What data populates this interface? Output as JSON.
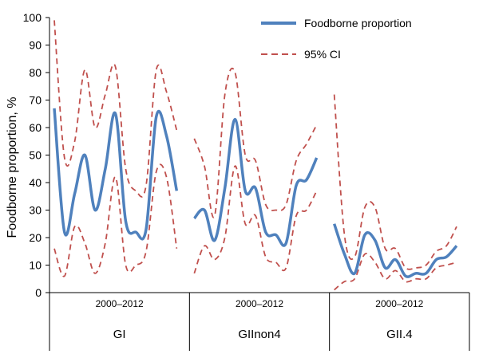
{
  "chart_data": {
    "type": "line",
    "ylabel": "Foodborne proportion, %",
    "ylim": [
      0,
      100
    ],
    "yticks": [
      0,
      10,
      20,
      30,
      40,
      50,
      60,
      70,
      80,
      90,
      100
    ],
    "grid": false,
    "legend_position": "top-right",
    "x_period_label": "2000–2012",
    "groups": [
      {
        "name": "GI",
        "period": "2000–2012",
        "foodborne": [
          67,
          22,
          36,
          50,
          30,
          45,
          65,
          26,
          22,
          23,
          64,
          57,
          37
        ],
        "ci_upper": [
          99,
          49,
          55,
          81,
          60,
          72,
          82,
          45,
          37,
          39,
          81,
          73,
          59
        ],
        "ci_lower": [
          16,
          6,
          24,
          18,
          7,
          18,
          42,
          10,
          10,
          15,
          44,
          42,
          16
        ]
      },
      {
        "name": "GIInon4",
        "period": "2000–2012",
        "foodborne": [
          27,
          30,
          19,
          38,
          63,
          37,
          38,
          22,
          21,
          18,
          39,
          41,
          49
        ],
        "ci_upper": [
          56,
          46,
          28,
          72,
          80,
          50,
          48,
          32,
          30,
          32,
          48,
          54,
          61
        ],
        "ci_lower": [
          7,
          17,
          12,
          20,
          46,
          25,
          28,
          13,
          11,
          9,
          28,
          30,
          37
        ]
      },
      {
        "name": "GII.4",
        "period": "2000–2012",
        "foodborne": [
          25,
          14,
          7,
          21,
          19,
          9,
          12,
          6,
          7,
          7,
          12,
          13,
          17
        ],
        "ci_upper": [
          72,
          21,
          13,
          31,
          31,
          16,
          16,
          9,
          9,
          10,
          15,
          17,
          24
        ],
        "ci_lower": [
          1,
          4,
          5,
          14,
          11,
          5,
          8,
          4,
          5,
          5,
          9,
          10,
          11
        ]
      }
    ],
    "legend": [
      {
        "label": "Foodborne proportion",
        "color": "#4f81bd",
        "style": "solid"
      },
      {
        "label": "95% CI",
        "color": "#c0504d",
        "style": "dashed"
      }
    ]
  },
  "colors": {
    "main": "#4f81bd",
    "ci": "#c0504d",
    "axis": "#000000"
  }
}
